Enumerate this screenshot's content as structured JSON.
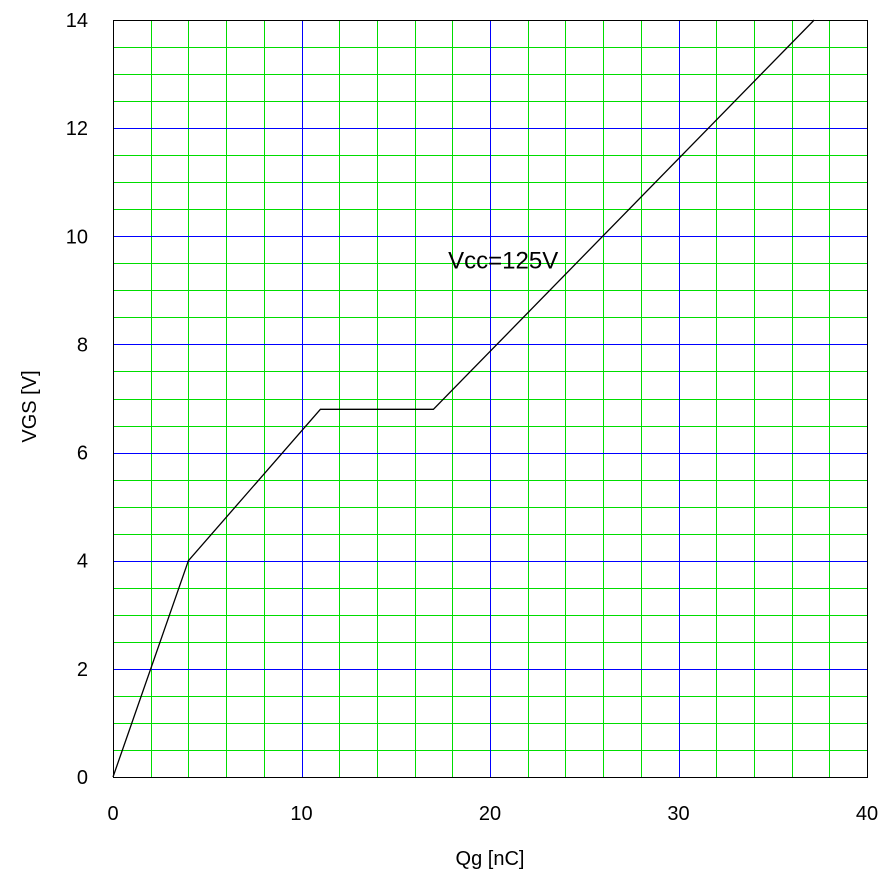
{
  "chart_data": {
    "type": "line",
    "title": "",
    "xlabel": "Qg [nC]",
    "ylabel": "VGS [V]",
    "xlim": [
      0,
      40
    ],
    "ylim": [
      0,
      14
    ],
    "x_ticks": [
      0,
      10,
      20,
      30,
      40
    ],
    "x_tick_labels": [
      "0",
      "10",
      "20",
      "30",
      "40"
    ],
    "y_ticks": [
      0,
      2,
      4,
      6,
      8,
      10,
      12,
      14
    ],
    "y_tick_labels": [
      "0",
      "2",
      "4",
      "6",
      "8",
      "10",
      "12",
      "14"
    ],
    "grid": {
      "major": true,
      "minor": true,
      "x_major_step": 10,
      "x_minor_step": 2,
      "y_major_step": 2,
      "y_minor_step": 0.5,
      "major_color": "#0000ff",
      "minor_color": "#00dd00"
    },
    "series": [
      {
        "color": "#000000",
        "x": [
          0,
          4,
          11,
          17,
          37.2
        ],
        "y": [
          0,
          4,
          6.8,
          6.8,
          14
        ]
      }
    ],
    "annotations": [
      {
        "text": "Vcc=125V",
        "x": 20.7,
        "y": 9.4
      }
    ]
  }
}
